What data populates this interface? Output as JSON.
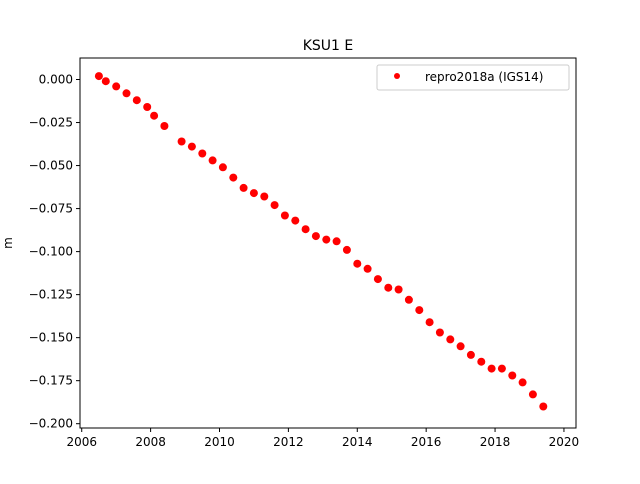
{
  "chart_data": {
    "type": "scatter",
    "title": "KSU1 E",
    "xlabel": "",
    "ylabel": "m",
    "xlim": [
      2005.95,
      2020.35
    ],
    "ylim": [
      -0.2025,
      0.0125
    ],
    "x_ticks": [
      2006,
      2008,
      2010,
      2012,
      2014,
      2016,
      2018,
      2020
    ],
    "x_tick_labels": [
      "2006",
      "2008",
      "2010",
      "2012",
      "2014",
      "2016",
      "2018",
      "2020"
    ],
    "y_ticks": [
      0.0,
      -0.025,
      -0.05,
      -0.075,
      -0.1,
      -0.125,
      -0.15,
      -0.175,
      -0.2
    ],
    "y_tick_labels": [
      "0.000",
      "−0.025",
      "−0.050",
      "−0.075",
      "−0.100",
      "−0.125",
      "−0.150",
      "−0.175",
      "−0.200"
    ],
    "grid": false,
    "legend_position": "top-right",
    "series": [
      {
        "name": "repro2018a (IGS14)",
        "color": "#ff0000",
        "marker": "point",
        "x": [
          2006.5,
          2006.7,
          2007.0,
          2007.3,
          2007.6,
          2007.9,
          2008.1,
          2008.4,
          2008.9,
          2009.2,
          2009.5,
          2009.8,
          2010.1,
          2010.4,
          2010.7,
          2011.0,
          2011.3,
          2011.6,
          2011.9,
          2012.2,
          2012.5,
          2012.8,
          2013.1,
          2013.4,
          2013.7,
          2014.0,
          2014.3,
          2014.6,
          2014.9,
          2015.2,
          2015.5,
          2015.8,
          2016.1,
          2016.4,
          2016.7,
          2017.0,
          2017.3,
          2017.6,
          2017.9,
          2018.2,
          2018.5,
          2018.8,
          2019.1,
          2019.4
        ],
        "y": [
          0.002,
          -0.001,
          -0.004,
          -0.008,
          -0.012,
          -0.016,
          -0.021,
          -0.027,
          -0.036,
          -0.039,
          -0.043,
          -0.047,
          -0.051,
          -0.057,
          -0.063,
          -0.066,
          -0.068,
          -0.073,
          -0.079,
          -0.082,
          -0.087,
          -0.091,
          -0.093,
          -0.094,
          -0.099,
          -0.107,
          -0.11,
          -0.116,
          -0.121,
          -0.122,
          -0.128,
          -0.134,
          -0.141,
          -0.147,
          -0.151,
          -0.155,
          -0.16,
          -0.164,
          -0.168,
          -0.168,
          -0.172,
          -0.176,
          -0.183,
          -0.19
        ]
      }
    ]
  }
}
